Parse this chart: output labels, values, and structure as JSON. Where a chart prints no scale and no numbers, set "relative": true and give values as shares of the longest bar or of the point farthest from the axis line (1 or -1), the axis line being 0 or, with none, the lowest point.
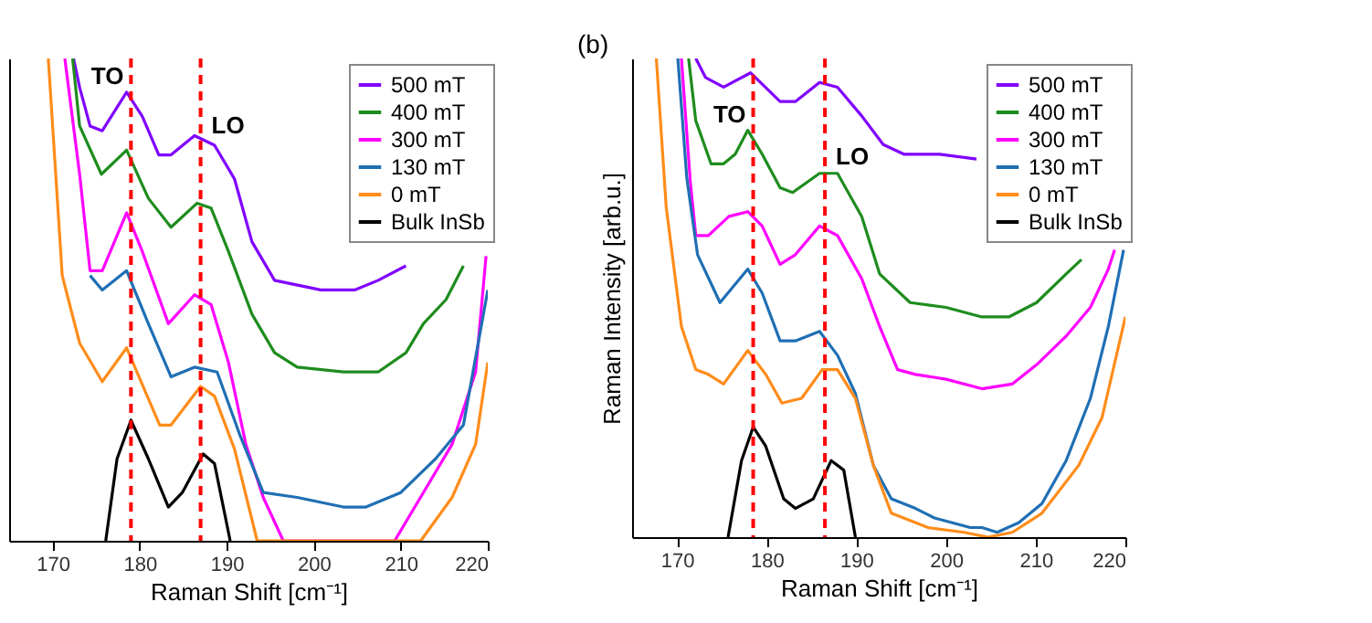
{
  "chart_data": [
    {
      "type": "line",
      "relative": true,
      "xlabel": "Raman Shift [cm⁻¹]",
      "xlim": [
        165,
        220
      ],
      "xticks": [
        170,
        180,
        190,
        200,
        210,
        220
      ],
      "grid": false,
      "legend": "top right",
      "marker": "none",
      "line_style": "solid",
      "series": [
        {
          "name": "500 mT",
          "color": "#8000ff",
          "x": [
            172.4,
            173.1,
            174.3,
            175.7,
            178.5,
            180.3,
            182.2,
            183.6,
            186.3,
            188.6,
            190.9,
            192.9,
            195.5,
            200.8,
            204.7,
            207.4,
            210.6
          ],
          "values": [
            1,
            0.94,
            0.86,
            0.85,
            0.93,
            0.88,
            0.8,
            0.8,
            0.84,
            0.82,
            0.75,
            0.62,
            0.54,
            0.52,
            0.52,
            0.54,
            0.57
          ]
        },
        {
          "name": "400 mT",
          "color": "#1e8c1e",
          "x": [
            172.3,
            173.1,
            175.6,
            178.5,
            181.0,
            183.6,
            186.6,
            188.2,
            190.2,
            192.9,
            195.5,
            198.1,
            203.4,
            207.4,
            210.6,
            212.6,
            215.2,
            217.2
          ],
          "values": [
            1,
            0.86,
            0.76,
            0.81,
            0.71,
            0.65,
            0.7,
            0.69,
            0.6,
            0.47,
            0.39,
            0.36,
            0.35,
            0.35,
            0.39,
            0.45,
            0.5,
            0.57
          ]
        },
        {
          "name": "300 mT",
          "color": "#ff00ff",
          "x": [
            171.4,
            173.1,
            174.3,
            175.7,
            178.5,
            180.3,
            183.3,
            186.3,
            188.2,
            190.2,
            192.2,
            194.2,
            196.5,
            209.3,
            212.6,
            215.9,
            218.6,
            219.8
          ],
          "values": [
            1,
            0.76,
            0.56,
            0.56,
            0.68,
            0.6,
            0.45,
            0.51,
            0.49,
            0.37,
            0.2,
            0.09,
            0,
            0,
            0.1,
            0.2,
            0.35,
            0.59
          ]
        },
        {
          "name": "130 mT",
          "color": "#1f6fb4",
          "x": [
            174.3,
            175.7,
            178.5,
            181.0,
            183.6,
            186.3,
            188.9,
            191.5,
            194.2,
            198.1,
            203.4,
            206.0,
            210.0,
            214.0,
            217.2,
            220.0
          ],
          "values": [
            0.55,
            0.52,
            0.56,
            0.45,
            0.34,
            0.36,
            0.35,
            0.22,
            0.1,
            0.09,
            0.07,
            0.07,
            0.1,
            0.17,
            0.24,
            0.52
          ]
        },
        {
          "name": "0 mT",
          "color": "#ff8c1a",
          "x": [
            169.5,
            171.1,
            173.1,
            175.7,
            178.5,
            182.3,
            183.6,
            187.0,
            188.6,
            190.9,
            193.5,
            212.3,
            215.9,
            218.6,
            220.0
          ],
          "values": [
            1,
            0.55,
            0.41,
            0.33,
            0.4,
            0.24,
            0.24,
            0.32,
            0.3,
            0.19,
            0,
            0,
            0.09,
            0.2,
            0.37
          ]
        },
        {
          "name": "Bulk InSb",
          "color": "#000000",
          "x": [
            176.1,
            177.4,
            179.0,
            181.0,
            183.3,
            184.9,
            187.3,
            188.6,
            190.4
          ],
          "values": [
            0,
            0.17,
            0.25,
            0.17,
            0.07,
            0.1,
            0.18,
            0.16,
            0
          ]
        }
      ],
      "ref_lines": [
        {
          "axis": "x",
          "value": 179,
          "color": "#ff0000",
          "line_style": "dashed"
        },
        {
          "axis": "x",
          "value": 187,
          "color": "#ff0000",
          "line_style": "dashed"
        }
      ],
      "annotations": [
        "TO",
        "LO"
      ]
    },
    {
      "type": "line",
      "relative": true,
      "xlabel": "Raman Shift [cm⁻¹]",
      "ylabel": "Raman Intensity [arb.u.]",
      "xlim": [
        165,
        220
      ],
      "xticks": [
        170,
        180,
        190,
        200,
        210,
        220
      ],
      "grid": false,
      "legend": "top right",
      "marker": "none",
      "line_style": "solid",
      "series": [
        {
          "name": "500 mT",
          "color": "#8000ff",
          "x": [
            172.1,
            173.2,
            175.2,
            178.2,
            181.5,
            183.2,
            185.9,
            187.9,
            190.6,
            193.0,
            195.3,
            199.3,
            203.4
          ],
          "values": [
            1,
            0.96,
            0.94,
            0.97,
            0.91,
            0.91,
            0.95,
            0.94,
            0.88,
            0.82,
            0.8,
            0.8,
            0.79
          ]
        },
        {
          "name": "400 mT",
          "color": "#1e8c1e",
          "x": [
            171.3,
            172.1,
            173.8,
            175.2,
            176.5,
            177.9,
            179.5,
            181.5,
            182.9,
            185.9,
            187.9,
            190.6,
            192.6,
            196.0,
            200.0,
            204.0,
            207.0,
            210.1,
            213.4,
            215.1
          ],
          "values": [
            1,
            0.87,
            0.78,
            0.78,
            0.8,
            0.85,
            0.8,
            0.73,
            0.72,
            0.76,
            0.76,
            0.67,
            0.55,
            0.49,
            0.48,
            0.46,
            0.46,
            0.49,
            0.55,
            0.58
          ]
        },
        {
          "name": "300 mT",
          "color": "#ff00ff",
          "x": [
            170.5,
            171.5,
            172.1,
            173.5,
            175.8,
            177.9,
            179.5,
            181.5,
            183.2,
            185.9,
            187.9,
            190.6,
            192.6,
            194.6,
            196.6,
            200.0,
            204.0,
            207.4,
            210.1,
            213.4,
            216.1,
            218.1,
            218.8
          ],
          "values": [
            1,
            0.74,
            0.63,
            0.63,
            0.67,
            0.68,
            0.65,
            0.57,
            0.59,
            0.65,
            0.63,
            0.54,
            0.44,
            0.35,
            0.34,
            0.33,
            0.31,
            0.32,
            0.36,
            0.42,
            0.48,
            0.56,
            0.6
          ]
        },
        {
          "name": "130 mT",
          "color": "#1f6fb4",
          "x": [
            170.1,
            171.1,
            172.3,
            174.8,
            177.9,
            179.5,
            181.5,
            183.2,
            185.9,
            187.9,
            189.9,
            191.9,
            193.9,
            196.6,
            198.7,
            202.7,
            204.0,
            205.7,
            208.1,
            210.7,
            213.4,
            216.1,
            218.1,
            219.8
          ],
          "values": [
            1,
            0.75,
            0.59,
            0.49,
            0.56,
            0.51,
            0.41,
            0.41,
            0.43,
            0.38,
            0.3,
            0.15,
            0.08,
            0.06,
            0.04,
            0.02,
            0.02,
            0.01,
            0.03,
            0.07,
            0.16,
            0.29,
            0.44,
            0.6
          ]
        },
        {
          "name": "0 mT",
          "color": "#ff8c1a",
          "x": [
            167.7,
            168.8,
            170.5,
            172.1,
            173.5,
            175.2,
            177.9,
            179.9,
            181.7,
            183.9,
            186.2,
            187.9,
            189.9,
            191.9,
            193.9,
            198.0,
            202.0,
            204.7,
            207.4,
            210.7,
            214.8,
            217.4,
            220.0
          ],
          "values": [
            1,
            0.69,
            0.44,
            0.35,
            0.34,
            0.32,
            0.39,
            0.34,
            0.28,
            0.29,
            0.35,
            0.35,
            0.29,
            0.15,
            0.05,
            0.02,
            0.01,
            0,
            0.01,
            0.05,
            0.15,
            0.25,
            0.46
          ]
        },
        {
          "name": "Bulk InSb",
          "color": "#000000",
          "x": [
            175.7,
            177.2,
            178.5,
            179.9,
            181.9,
            183.2,
            185.2,
            187.2,
            188.6,
            189.9
          ],
          "values": [
            0,
            0.16,
            0.23,
            0.19,
            0.08,
            0.06,
            0.08,
            0.16,
            0.14,
            0
          ]
        }
      ],
      "ref_lines": [
        {
          "axis": "x",
          "value": 178.5,
          "color": "#ff0000",
          "line_style": "dashed"
        },
        {
          "axis": "x",
          "value": 186.5,
          "color": "#ff0000",
          "line_style": "dashed"
        }
      ],
      "annotations": [
        "TO",
        "LO",
        "(b)"
      ]
    }
  ]
}
